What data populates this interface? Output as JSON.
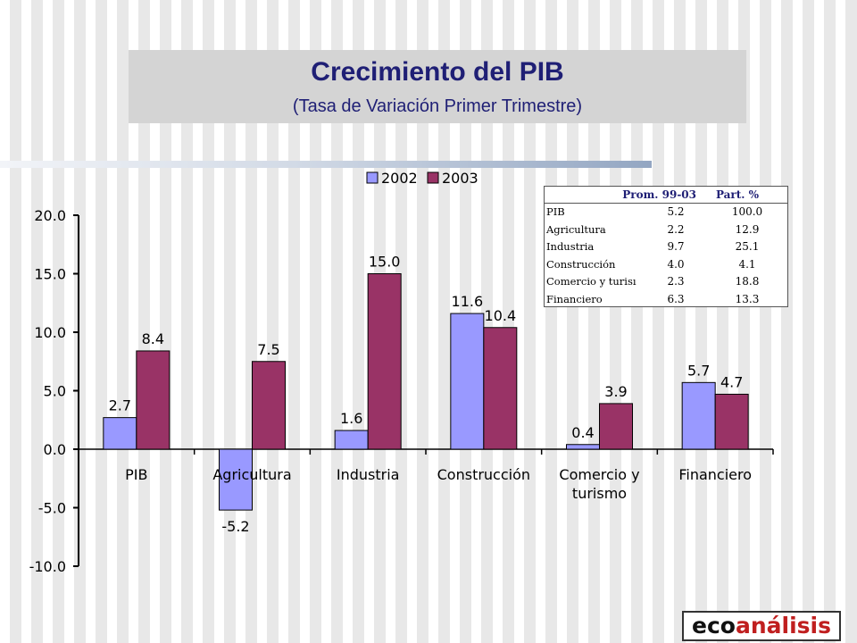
{
  "slide": {
    "title": "Crecimiento del PIB",
    "subtitle": "(Tasa de Variación Primer Trimestre)",
    "logo_part1": "eco",
    "logo_part2": "análisis"
  },
  "colors": {
    "series_2002": "#9999ff",
    "series_2003": "#993366",
    "title": "#1f1f75",
    "logo_accent": "#c01f1f"
  },
  "chart_data": {
    "type": "bar",
    "categories": [
      "PIB",
      "Agricultura",
      "Industria",
      "Construcción",
      "Comercio y turismo",
      "Financiero"
    ],
    "series": [
      {
        "name": "2002",
        "values": [
          2.7,
          -5.2,
          1.6,
          11.6,
          0.4,
          5.7
        ],
        "labels": [
          "2.7",
          "-5.2",
          "1.6",
          "11.6",
          "0.4",
          "5.7"
        ]
      },
      {
        "name": "2003",
        "values": [
          8.4,
          7.5,
          15.0,
          10.4,
          3.9,
          4.7
        ],
        "labels": [
          "8.4",
          "7.5",
          "15.0",
          "10.4",
          "3.9",
          "4.7"
        ]
      }
    ],
    "ylim": [
      -10,
      20
    ],
    "yticks": [
      "20.0",
      "15.0",
      "10.0",
      "5.0",
      "0.0",
      "-5.0",
      "-10.0"
    ],
    "ytick_values": [
      20,
      15,
      10,
      5,
      0,
      -5,
      -10
    ],
    "legend_position": "top",
    "grid": false
  },
  "table": {
    "headers": [
      "Prom. 99-03",
      "Part. %"
    ],
    "rows": [
      {
        "sector": "PIB",
        "prom": "5.2",
        "part": "100.0"
      },
      {
        "sector": "Agricultura",
        "prom": "2.2",
        "part": "12.9"
      },
      {
        "sector": "Industria",
        "prom": "9.7",
        "part": "25.1"
      },
      {
        "sector": "Construcción",
        "prom": "4.0",
        "part": "4.1"
      },
      {
        "sector": "Comercio y turisı",
        "prom": "2.3",
        "part": "18.8"
      },
      {
        "sector": "Financiero",
        "prom": "6.3",
        "part": "13.3"
      }
    ]
  }
}
